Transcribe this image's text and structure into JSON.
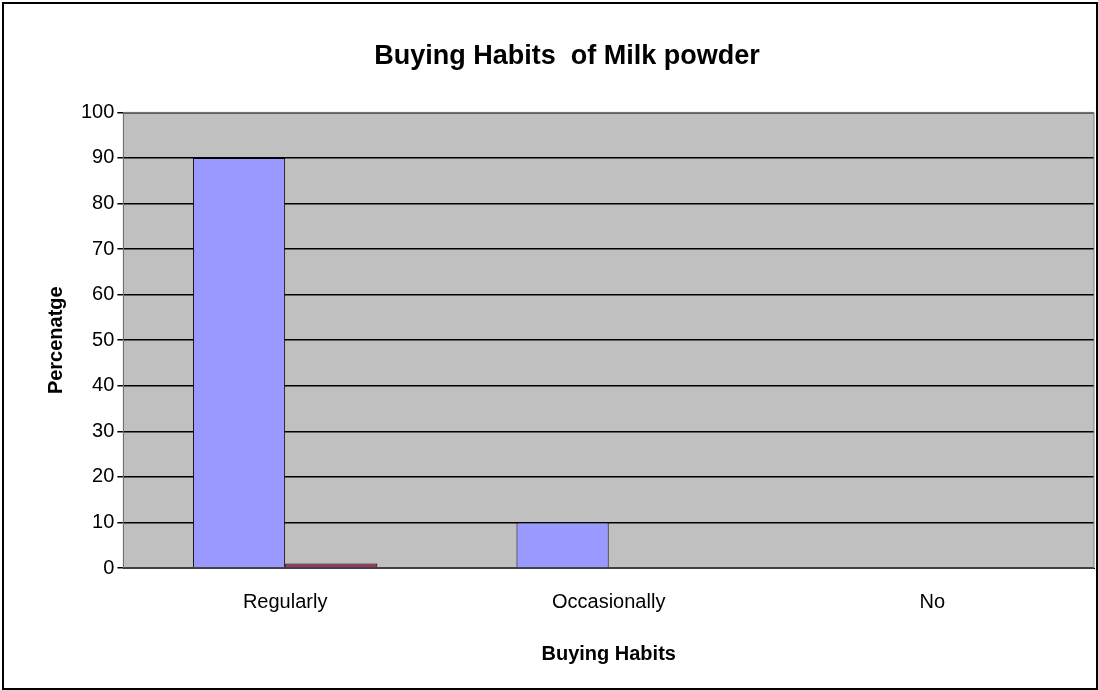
{
  "chart_data": {
    "type": "bar",
    "title": "Buying Habits  of Milk powder",
    "xlabel": "Buying Habits",
    "ylabel": "Percenatge",
    "categories": [
      "Regularly",
      "Occasionally",
      "No"
    ],
    "series": [
      {
        "color": "#9999ff",
        "values": [
          90,
          10,
          0
        ]
      },
      {
        "color": "#993366",
        "values": [
          1,
          0,
          0
        ]
      }
    ],
    "ylim": [
      0,
      100
    ],
    "yticks": [
      0,
      10,
      20,
      30,
      40,
      50,
      60,
      70,
      80,
      90,
      100
    ],
    "grid": "y",
    "legend": false
  }
}
